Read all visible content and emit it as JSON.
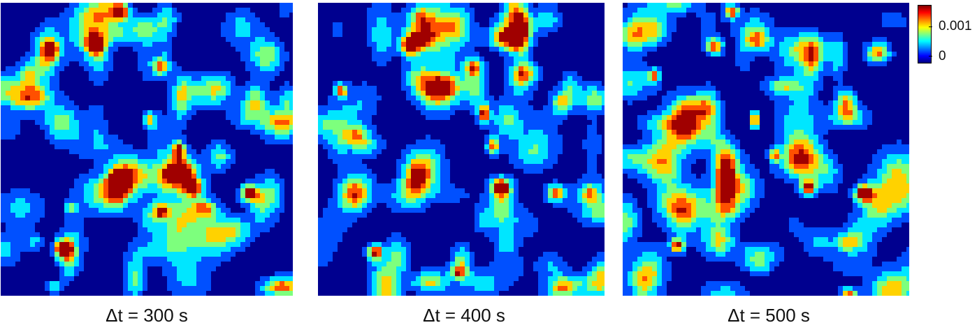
{
  "chart_data": [
    {
      "type": "heatmap",
      "title": "",
      "caption": "Δt = 300 s",
      "xlabel": "",
      "ylabel": "",
      "colormap": "jet",
      "value_range": [
        0,
        0.002
      ],
      "seed": 300,
      "peaks": [
        {
          "x": 0.4,
          "y": 0.62,
          "amp": 0.002,
          "sx": 0.03,
          "sy": 0.045
        },
        {
          "x": 0.32,
          "y": 0.14,
          "amp": 0.0018,
          "sx": 0.02,
          "sy": 0.02
        },
        {
          "x": 0.41,
          "y": 0.03,
          "amp": 0.0018,
          "sx": 0.018,
          "sy": 0.018
        },
        {
          "x": 0.17,
          "y": 0.16,
          "amp": 0.0016,
          "sx": 0.018,
          "sy": 0.018
        },
        {
          "x": 0.55,
          "y": 0.22,
          "amp": 0.0016,
          "sx": 0.02,
          "sy": 0.022
        },
        {
          "x": 0.61,
          "y": 0.5,
          "amp": 0.0017,
          "sx": 0.016,
          "sy": 0.022
        },
        {
          "x": 0.66,
          "y": 0.63,
          "amp": 0.0019,
          "sx": 0.022,
          "sy": 0.022
        },
        {
          "x": 0.85,
          "y": 0.65,
          "amp": 0.0019,
          "sx": 0.022,
          "sy": 0.02
        },
        {
          "x": 0.21,
          "y": 0.84,
          "amp": 0.0019,
          "sx": 0.02,
          "sy": 0.02
        },
        {
          "x": 0.55,
          "y": 0.71,
          "amp": 0.0016,
          "sx": 0.02,
          "sy": 0.018
        },
        {
          "x": 0.1,
          "y": 0.25,
          "amp": 0.0012,
          "sx": 0.03,
          "sy": 0.035
        },
        {
          "x": 0.87,
          "y": 0.33,
          "amp": 0.0012,
          "sx": 0.03,
          "sy": 0.035
        },
        {
          "x": 0.51,
          "y": 0.4,
          "amp": 0.0014,
          "sx": 0.015,
          "sy": 0.02
        },
        {
          "x": 0.7,
          "y": 0.7,
          "amp": 0.001,
          "sx": 0.03,
          "sy": 0.02
        },
        {
          "x": 0.24,
          "y": 0.7,
          "amp": 0.001,
          "sx": 0.015,
          "sy": 0.015
        },
        {
          "x": 0.18,
          "y": 0.97,
          "amp": 0.001,
          "sx": 0.02,
          "sy": 0.015
        }
      ]
    },
    {
      "type": "heatmap",
      "title": "",
      "caption": "Δt = 400 s",
      "xlabel": "",
      "ylabel": "",
      "colormap": "jet",
      "value_range": [
        0,
        0.002
      ],
      "seed": 400,
      "peaks": [
        {
          "x": 0.34,
          "y": 0.6,
          "amp": 0.0017,
          "sx": 0.035,
          "sy": 0.055
        },
        {
          "x": 0.32,
          "y": 0.15,
          "amp": 0.0019,
          "sx": 0.022,
          "sy": 0.022
        },
        {
          "x": 0.58,
          "y": 0.38,
          "amp": 0.0018,
          "sx": 0.014,
          "sy": 0.022
        },
        {
          "x": 0.61,
          "y": 0.49,
          "amp": 0.0017,
          "sx": 0.016,
          "sy": 0.02
        },
        {
          "x": 0.64,
          "y": 0.63,
          "amp": 0.002,
          "sx": 0.024,
          "sy": 0.024
        },
        {
          "x": 0.83,
          "y": 0.65,
          "amp": 0.0019,
          "sx": 0.022,
          "sy": 0.02
        },
        {
          "x": 0.2,
          "y": 0.85,
          "amp": 0.0019,
          "sx": 0.02,
          "sy": 0.02
        },
        {
          "x": 0.54,
          "y": 0.22,
          "amp": 0.0015,
          "sx": 0.02,
          "sy": 0.022
        },
        {
          "x": 0.08,
          "y": 0.3,
          "amp": 0.0016,
          "sx": 0.016,
          "sy": 0.018
        },
        {
          "x": 0.7,
          "y": 0.07,
          "amp": 0.0011,
          "sx": 0.05,
          "sy": 0.04
        },
        {
          "x": 0.85,
          "y": 0.34,
          "amp": 0.0013,
          "sx": 0.025,
          "sy": 0.03
        },
        {
          "x": 0.49,
          "y": 0.92,
          "amp": 0.0011,
          "sx": 0.02,
          "sy": 0.015
        },
        {
          "x": 0.13,
          "y": 0.45,
          "amp": 0.001,
          "sx": 0.03,
          "sy": 0.025
        },
        {
          "x": 0.95,
          "y": 0.65,
          "amp": 0.0011,
          "sx": 0.02,
          "sy": 0.02
        }
      ]
    },
    {
      "type": "heatmap",
      "title": "",
      "caption": "Δt = 500 s",
      "xlabel": "",
      "ylabel": "",
      "colormap": "jet",
      "value_range": [
        0,
        0.002
      ],
      "seed": 500,
      "peaks": [
        {
          "x": 0.36,
          "y": 0.61,
          "amp": 0.002,
          "sx": 0.028,
          "sy": 0.055
        },
        {
          "x": 0.32,
          "y": 0.15,
          "amp": 0.0019,
          "sx": 0.02,
          "sy": 0.02
        },
        {
          "x": 0.38,
          "y": 0.03,
          "amp": 0.0018,
          "sx": 0.018,
          "sy": 0.018
        },
        {
          "x": 0.11,
          "y": 0.25,
          "amp": 0.0017,
          "sx": 0.014,
          "sy": 0.016
        },
        {
          "x": 0.46,
          "y": 0.4,
          "amp": 0.0018,
          "sx": 0.012,
          "sy": 0.02
        },
        {
          "x": 0.65,
          "y": 0.63,
          "amp": 0.0019,
          "sx": 0.02,
          "sy": 0.02
        },
        {
          "x": 0.84,
          "y": 0.65,
          "amp": 0.002,
          "sx": 0.022,
          "sy": 0.02
        },
        {
          "x": 0.19,
          "y": 0.83,
          "amp": 0.0018,
          "sx": 0.018,
          "sy": 0.018
        },
        {
          "x": 0.89,
          "y": 0.17,
          "amp": 0.0016,
          "sx": 0.03,
          "sy": 0.025
        },
        {
          "x": 0.53,
          "y": 0.52,
          "amp": 0.0015,
          "sx": 0.012,
          "sy": 0.018
        },
        {
          "x": 0.78,
          "y": 0.34,
          "amp": 0.0014,
          "sx": 0.025,
          "sy": 0.03
        },
        {
          "x": 0.47,
          "y": 0.13,
          "amp": 0.0012,
          "sx": 0.03,
          "sy": 0.025
        },
        {
          "x": 0.79,
          "y": 0.99,
          "amp": 0.0016,
          "sx": 0.02,
          "sy": 0.012
        },
        {
          "x": 0.78,
          "y": 0.82,
          "amp": 0.0011,
          "sx": 0.025,
          "sy": 0.02
        }
      ]
    }
  ],
  "colorbar": {
    "ticks": [
      {
        "value": 0.001,
        "label": "0.001"
      },
      {
        "value": 0,
        "label": "0"
      }
    ],
    "range": [
      0,
      0.002
    ]
  }
}
